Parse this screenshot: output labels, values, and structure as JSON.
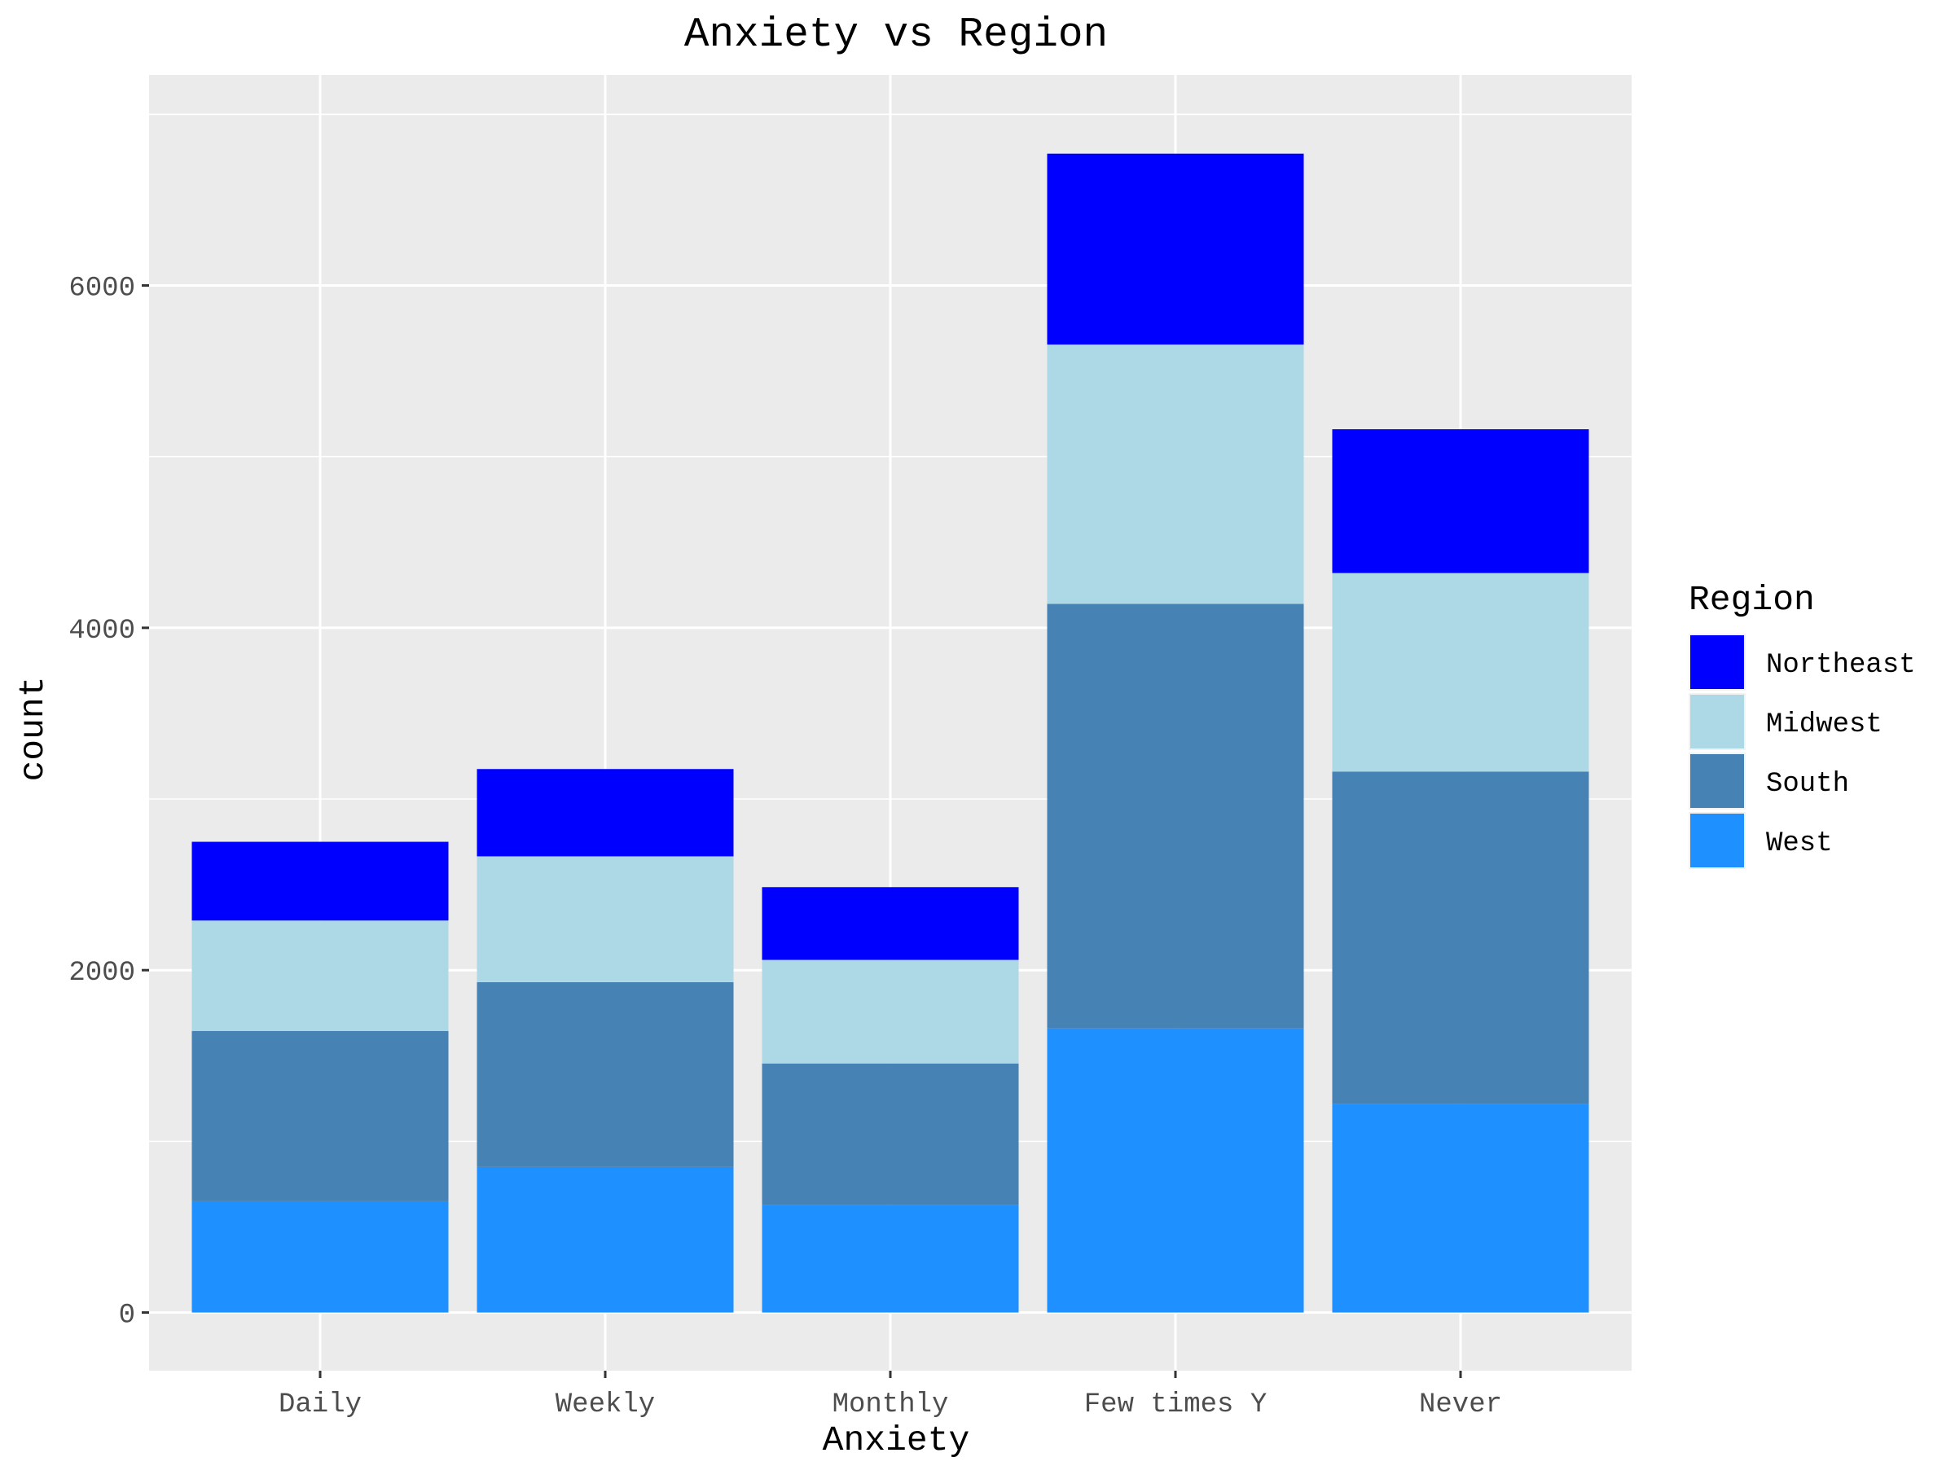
{
  "chart_data": {
    "type": "bar",
    "stacked": true,
    "title": "Anxiety vs Region",
    "xlabel": "Anxiety",
    "ylabel": "count",
    "categories": [
      "Daily",
      "Weekly",
      "Monthly",
      "Few times Y",
      "Never"
    ],
    "ylim": [
      -340,
      7230
    ],
    "yticks": [
      0,
      2000,
      4000,
      6000
    ],
    "y_tick_labels": [
      "0",
      "2000",
      "4000",
      "6000"
    ],
    "grid": true,
    "legend": {
      "title": "Region",
      "position": "right",
      "entries": [
        "Northeast",
        "Midwest",
        "South",
        "West"
      ]
    },
    "series": [
      {
        "name": "West",
        "color": "#1E90FF",
        "values": [
          650,
          850,
          630,
          1660,
          1220
        ]
      },
      {
        "name": "South",
        "color": "#4682B4",
        "values": [
          995,
          1080,
          825,
          2480,
          1940
        ]
      },
      {
        "name": "Midwest",
        "color": "#ADD8E6",
        "values": [
          645,
          735,
          605,
          1515,
          1160
        ]
      },
      {
        "name": "Northeast",
        "color": "#0000FF",
        "values": [
          460,
          510,
          425,
          1115,
          840
        ]
      }
    ]
  }
}
